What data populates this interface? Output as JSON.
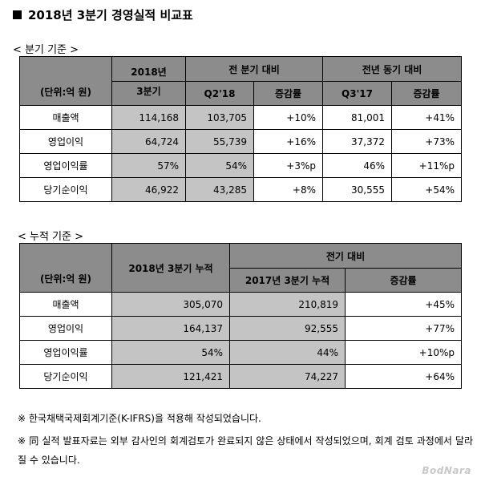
{
  "title": "2018년 3분기 경영실적 비교표",
  "quarterly": {
    "section_label": "< 분기 기준 >",
    "unit_label": "(단위:억 원)",
    "year_top": "2018년",
    "year_bottom": "3분기",
    "group1": "전 분기 대비",
    "group2": "전년 동기 대비",
    "sub": [
      "Q2'18",
      "증감률",
      "Q3'17",
      "증감률"
    ],
    "rows": [
      {
        "label": "매출액",
        "cells": [
          "114,168",
          "103,705",
          "+10%",
          "81,001",
          "+41%"
        ]
      },
      {
        "label": "영업이익",
        "cells": [
          "64,724",
          "55,739",
          "+16%",
          "37,372",
          "+73%"
        ]
      },
      {
        "label": "영업이익률",
        "cells": [
          "57%",
          "54%",
          "+3%p",
          "46%",
          "+11%p"
        ]
      },
      {
        "label": "당기순이익",
        "cells": [
          "46,922",
          "43,285",
          "+8%",
          "30,555",
          "+54%"
        ]
      }
    ]
  },
  "cumulative": {
    "section_label": "< 누적 기준 >",
    "unit_label": "(단위:억 원)",
    "col1": "2018년 3분기 누적",
    "group": "전기 대비",
    "sub": [
      "2017년 3분기 누적",
      "증감률"
    ],
    "rows": [
      {
        "label": "매출액",
        "cells": [
          "305,070",
          "210,819",
          "+45%"
        ]
      },
      {
        "label": "영업이익",
        "cells": [
          "164,137",
          "92,555",
          "+77%"
        ]
      },
      {
        "label": "영업이익률",
        "cells": [
          "54%",
          "44%",
          "+10%p"
        ]
      },
      {
        "label": "당기순이익",
        "cells": [
          "121,421",
          "74,227",
          "+64%"
        ]
      }
    ]
  },
  "notes": [
    "※ 한국채택국제회계기준(K-IFRS)을 적용해 작성되었습니다.",
    "※ 同 실적 발표자료는 외부 감사인의 회계검토가 완료되지 않은 상태에서 작성되었으며, 회계 검토 과정에서 달라질 수 있습니다."
  ],
  "logo": "BodNara"
}
